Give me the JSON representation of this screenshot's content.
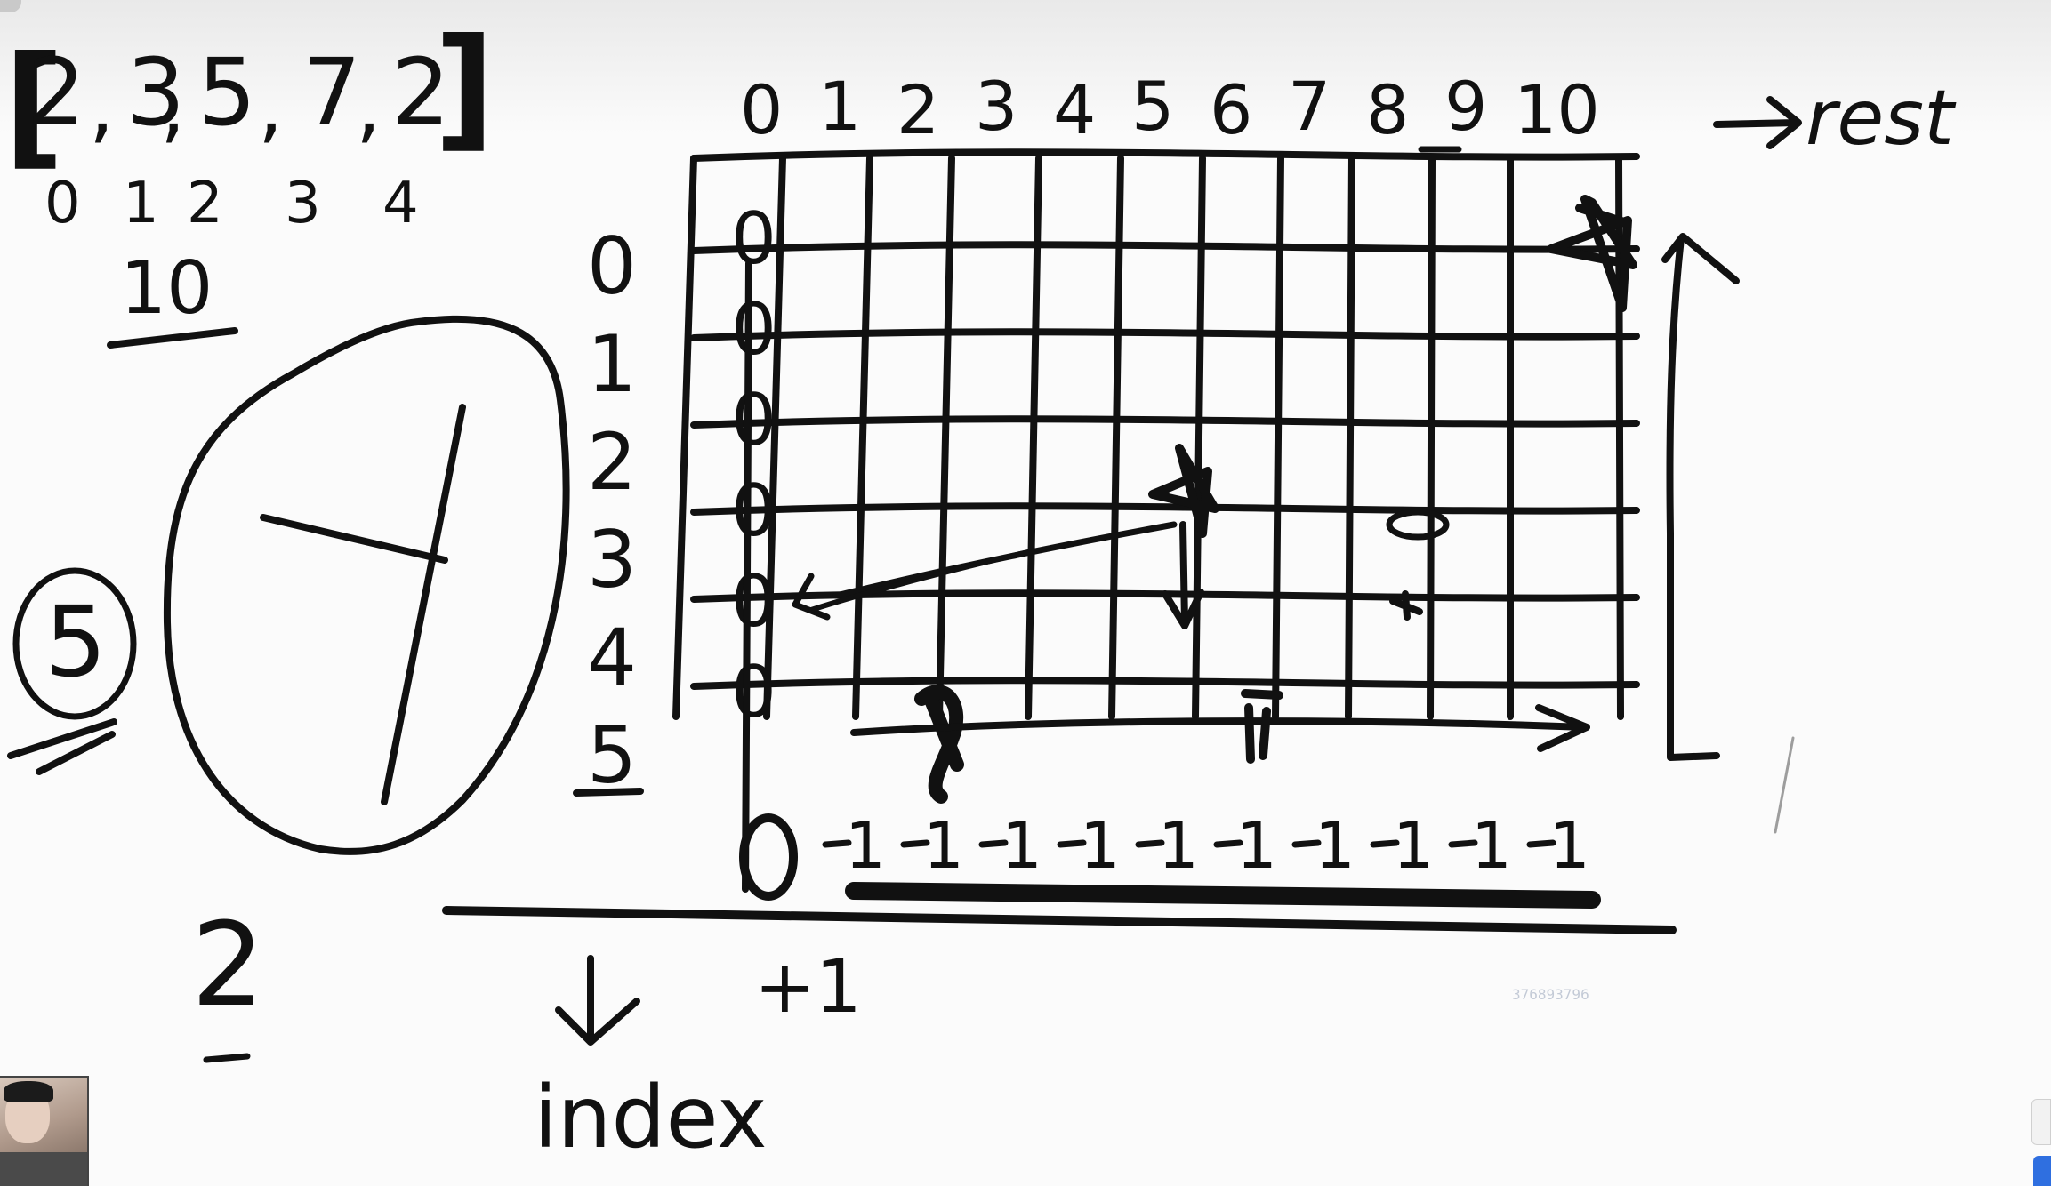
{
  "array": {
    "open": "[",
    "close": "]",
    "values": [
      "2",
      "3",
      "5",
      "7",
      "2"
    ],
    "commas": [
      ",",
      ",",
      ",",
      ","
    ],
    "indices": [
      "0",
      "1",
      "2",
      "3",
      "4"
    ]
  },
  "target": "10",
  "side_number": "5",
  "bottom_number": "2",
  "grid": {
    "column_headers": [
      "0",
      "1",
      "2",
      "3",
      "4",
      "5",
      "6",
      "7",
      "8",
      "9",
      "10"
    ],
    "row_headers": [
      "0",
      "1",
      "2",
      "3",
      "4",
      "5"
    ],
    "first_column": [
      "0",
      "0",
      "0",
      "0",
      "0",
      "0"
    ],
    "last_row_values": [
      "1",
      "1",
      "1",
      "1",
      "1",
      "1",
      "1",
      "1",
      "1",
      "1"
    ],
    "arrow_right_label": "rest",
    "arrow_down_label": "index",
    "plus_one": "+1"
  },
  "watermark": "376893796"
}
